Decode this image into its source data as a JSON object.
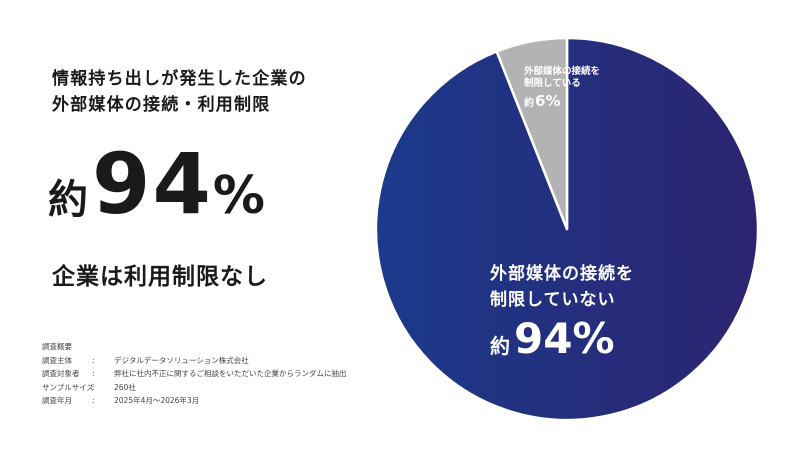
{
  "headline": {
    "line1": "情報持ち出しが発生した企業の",
    "line2": "外部媒体の接続・利用制限"
  },
  "big_stat": {
    "prefix": "約",
    "value": "94",
    "unit": "%"
  },
  "subhead": "企業は利用制限なし",
  "survey": {
    "title": "調査概要",
    "rows": [
      {
        "key": "調査主体",
        "sep": ":",
        "value": "デジタルデータソリューション株式会社"
      },
      {
        "key": "調査対象者",
        "sep": ":",
        "value": "弊社に社内不正に関するご相談をいただいた企業からランダムに抽出"
      },
      {
        "key": "サンプルサイズ",
        "sep": ":",
        "value": "260社"
      },
      {
        "key": "調査年月",
        "sep": ":",
        "value": "2025年4月～2026年3月"
      }
    ]
  },
  "chart_data": {
    "type": "pie",
    "title": "",
    "slices": [
      {
        "label_line1": "外部媒体の接続を",
        "label_line2": "制限していない",
        "prefix": "約",
        "value": 94,
        "display": "94",
        "unit": "%",
        "color_start": "#1b3a8c",
        "color_end": "#2c2470"
      },
      {
        "label_line1": "外部媒体の接続を",
        "label_line2": "制限している",
        "prefix": "約",
        "value": 6,
        "display": "6",
        "unit": "%",
        "color": "#b3b3b3"
      }
    ],
    "start": "top",
    "direction": "clockwise",
    "legend": "none"
  }
}
